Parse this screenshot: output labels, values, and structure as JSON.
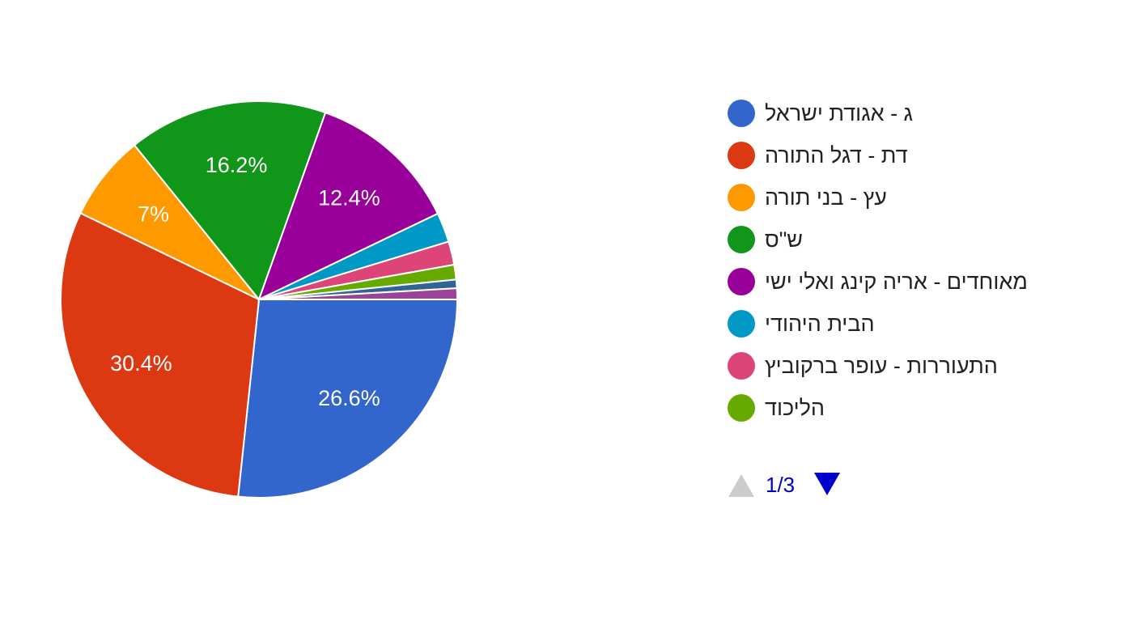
{
  "chart_data": {
    "type": "pie",
    "categories": [
      "ג - אגודת ישראל",
      "דת - דגל התורה",
      "עץ - בני תורה",
      "ש\"ס",
      "מאוחדים - אריה קינג ואלי ישי",
      "הבית היהודי",
      "התעוררות - עופר ברקוביץ",
      "הליכוד",
      null,
      null
    ],
    "values": [
      26.6,
      30.4,
      7,
      16.2,
      12.4,
      2.4,
      1.9,
      1.2,
      0.7,
      0.9
    ],
    "value_labels": [
      "26.6%",
      "30.4%",
      "7%",
      "16.2%",
      "12.4%",
      null,
      null,
      null,
      null,
      null
    ],
    "colors": [
      "#3366cc",
      "#dc3912",
      "#ff9900",
      "#109618",
      "#990099",
      "#0099c6",
      "#dd4477",
      "#66aa00",
      "#316395",
      "#994499"
    ],
    "legend_page": "1/3"
  }
}
